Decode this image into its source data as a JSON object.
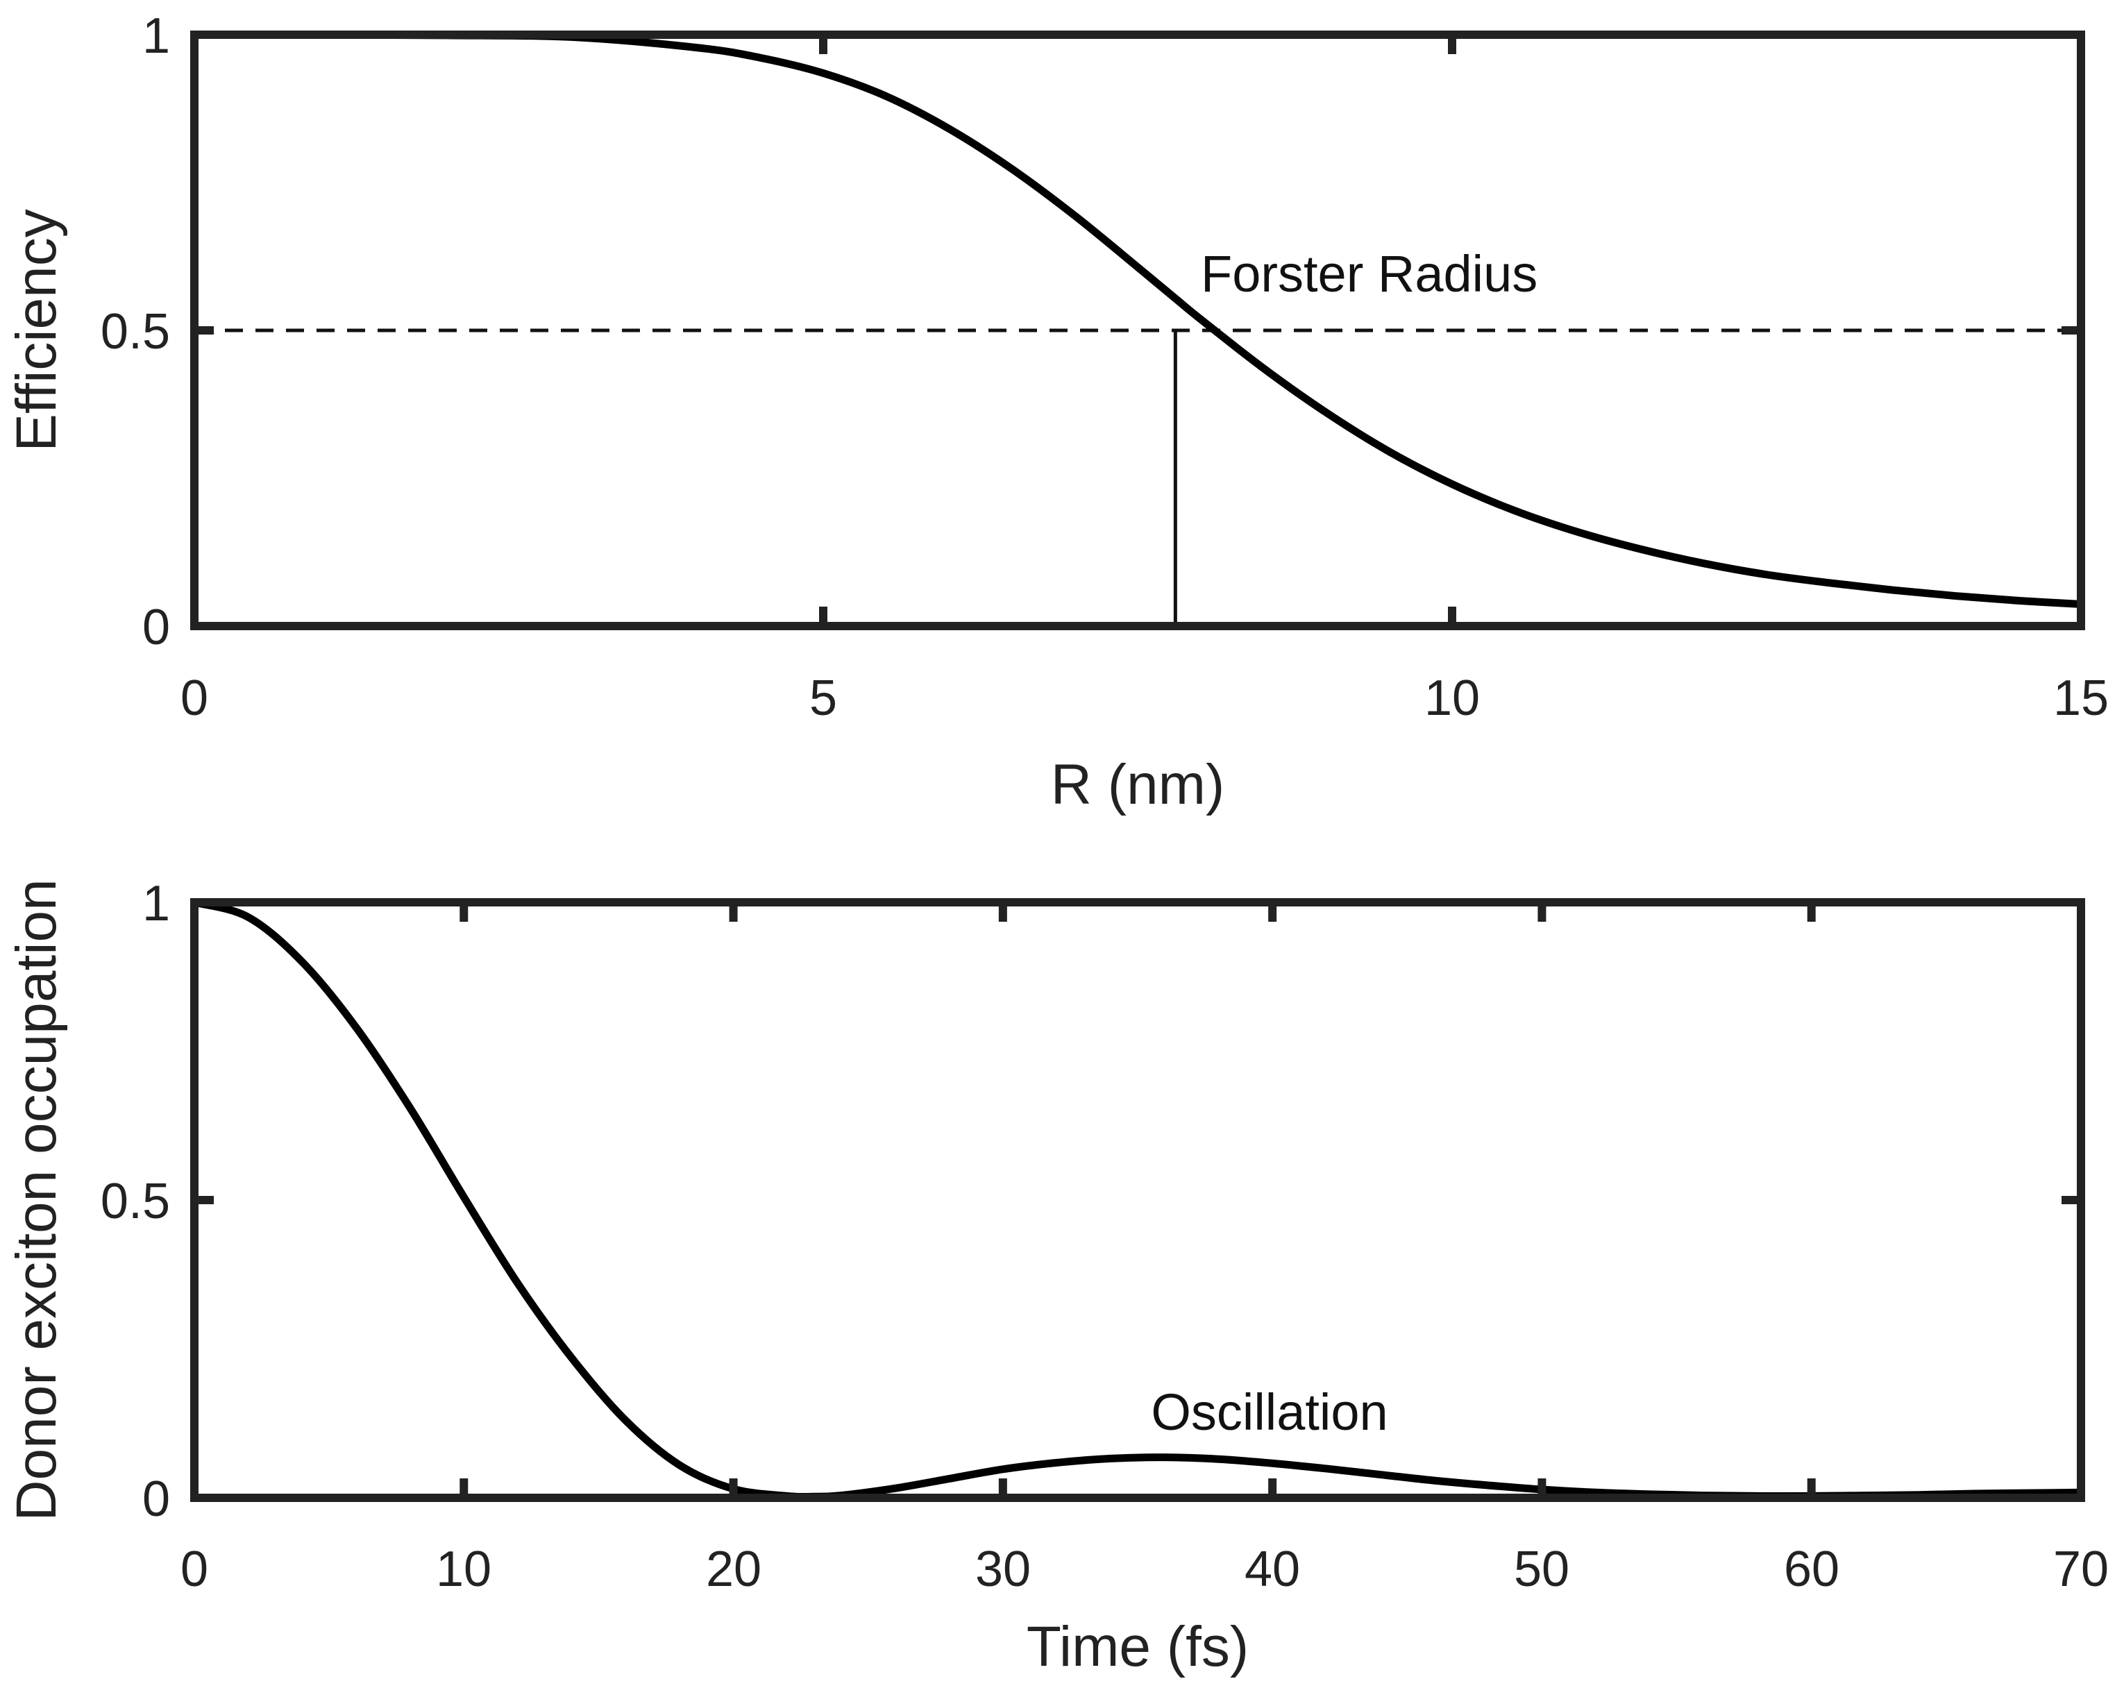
{
  "chart_data": [
    {
      "type": "line",
      "title": "",
      "xlabel": "R (nm)",
      "ylabel": "Efficiency",
      "xlim": [
        0,
        15
      ],
      "ylim": [
        0,
        1
      ],
      "xticks": [
        0,
        5,
        10,
        15
      ],
      "yticks": [
        0,
        0.5,
        1
      ],
      "xtick_labels": [
        "0",
        "5",
        "10",
        "15"
      ],
      "ytick_labels": [
        "0",
        "0.5",
        "1"
      ],
      "series": [
        {
          "name": "Efficiency",
          "x": [
            0,
            1,
            2,
            3,
            4,
            4.5,
            5,
            5.5,
            6,
            6.5,
            7,
            7.5,
            7.8,
            8,
            8.5,
            9,
            9.5,
            10,
            10.5,
            11,
            11.5,
            12,
            12.5,
            13,
            13.5,
            14,
            14.5,
            15
          ],
          "values": [
            1.0,
            1.0,
            0.999,
            0.996,
            0.978,
            0.961,
            0.935,
            0.896,
            0.841,
            0.773,
            0.694,
            0.607,
            0.554,
            0.519,
            0.436,
            0.361,
            0.295,
            0.24,
            0.195,
            0.159,
            0.13,
            0.106,
            0.087,
            0.073,
            0.061,
            0.051,
            0.043,
            0.037
          ]
        }
      ],
      "reference_lines": {
        "horizontal_dashed_y": 0.5,
        "vertical_x": 7.8
      },
      "annotations": [
        {
          "text": "Forster Radius",
          "x": 8.0,
          "y": 0.57
        }
      ]
    },
    {
      "type": "line",
      "title": "",
      "xlabel": "Time (fs)",
      "ylabel": "Donor exciton occupation",
      "xlim": [
        0,
        70
      ],
      "ylim": [
        0,
        1
      ],
      "xticks": [
        0,
        10,
        20,
        30,
        40,
        50,
        60,
        70
      ],
      "yticks": [
        0,
        0.5,
        1
      ],
      "xtick_labels": [
        "0",
        "10",
        "20",
        "30",
        "40",
        "50",
        "60",
        "70"
      ],
      "ytick_labels": [
        "0",
        "0.5",
        "1"
      ],
      "series": [
        {
          "name": "Donor exciton occupation",
          "x": [
            0,
            2,
            4,
            6,
            8,
            10,
            12,
            14,
            16,
            18,
            20,
            22,
            23,
            24,
            26,
            28,
            30,
            32,
            34,
            36,
            38,
            40,
            42,
            44,
            46,
            48,
            50,
            52,
            54,
            56,
            58,
            60,
            62,
            64,
            66,
            68,
            70
          ],
          "values": [
            1.0,
            0.975,
            0.9,
            0.79,
            0.655,
            0.505,
            0.36,
            0.235,
            0.13,
            0.055,
            0.015,
            0.003,
            0.002,
            0.004,
            0.016,
            0.032,
            0.048,
            0.059,
            0.066,
            0.068,
            0.065,
            0.058,
            0.049,
            0.039,
            0.029,
            0.021,
            0.014,
            0.009,
            0.006,
            0.004,
            0.003,
            0.003,
            0.004,
            0.005,
            0.007,
            0.008,
            0.009
          ]
        }
      ],
      "annotations": [
        {
          "text": "Oscillation",
          "x": 35,
          "y": 0.14
        }
      ]
    }
  ]
}
